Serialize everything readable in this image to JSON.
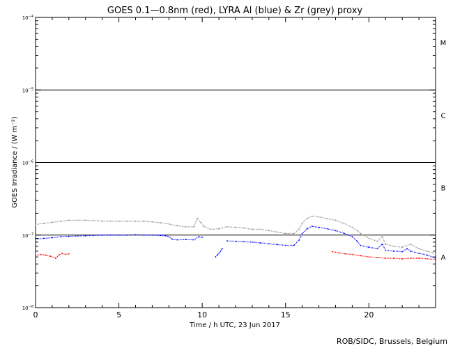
{
  "colors": {
    "goes": "#ff0000",
    "lyra_al": "#0000ff",
    "zr_proxy": "#909090",
    "axis": "#000000"
  },
  "chart_data": {
    "type": "scatter",
    "title": "GOES 0.1—0.8nm (red), LYRA Al (blue) & Zr (grey) proxy",
    "xlabel": "Time / h UTC, 23 Jun 2017",
    "ylabel": "GOES Irradiance / (W m⁻²)",
    "xlim": [
      0,
      24
    ],
    "ylim": [
      1e-08,
      0.0001
    ],
    "yscale": "log",
    "xticks": [
      0,
      5,
      10,
      15,
      20
    ],
    "yticks": [
      {
        "value": 1e-08,
        "base": "10",
        "exp": "−8"
      },
      {
        "value": 1e-07,
        "base": "10",
        "exp": "−7"
      },
      {
        "value": 1e-06,
        "base": "10",
        "exp": "−6"
      },
      {
        "value": 1e-05,
        "base": "10",
        "exp": "−5"
      },
      {
        "value": 0.0001,
        "base": "10",
        "exp": "−4"
      }
    ],
    "class_levels": [
      1e-07,
      1e-06,
      1e-05
    ],
    "class_labels": [
      {
        "label": "A",
        "value": 5e-08
      },
      {
        "label": "B",
        "value": 4.5e-07
      },
      {
        "label": "C",
        "value": 4.5e-06
      },
      {
        "label": "M",
        "value": 4.5e-05
      }
    ],
    "grid": false,
    "series": [
      {
        "name": "GOES 0.1—0.8nm",
        "color": "red",
        "segments": [
          {
            "x": [
              0.0,
              0.3,
              0.6,
              0.9,
              1.2,
              1.4,
              1.6,
              1.8,
              2.0
            ],
            "y": [
              5.2e-08,
              5.4e-08,
              5.3e-08,
              5.1e-08,
              4.8e-08,
              5.3e-08,
              5.6e-08,
              5.4e-08,
              5.5e-08
            ]
          },
          {
            "x": [
              17.8,
              18.2,
              18.6,
              19.0,
              19.5,
              20.0,
              20.5,
              21.0,
              21.5,
              22.0,
              22.5,
              23.0,
              23.5,
              24.0
            ],
            "y": [
              5.9e-08,
              5.7e-08,
              5.5e-08,
              5.4e-08,
              5.2e-08,
              5e-08,
              4.9e-08,
              4.8e-08,
              4.8e-08,
              4.7e-08,
              4.8e-08,
              4.8e-08,
              4.7e-08,
              4.6e-08
            ]
          }
        ]
      },
      {
        "name": "LYRA Al",
        "color": "blue",
        "segments": [
          {
            "x": [
              0.0,
              0.5,
              1.0,
              1.5,
              2.0,
              2.5,
              3.0,
              3.5,
              4.0,
              4.5,
              5.0,
              5.5,
              6.0,
              6.5,
              7.0,
              7.5,
              7.8,
              8.0,
              8.2,
              8.5,
              9.0,
              9.5,
              9.8,
              10.0
            ],
            "y": [
              8.8e-08,
              9e-08,
              9.2e-08,
              9.5e-08,
              9.6e-08,
              9.7e-08,
              9.8e-08,
              9.9e-08,
              1e-07,
              1e-07,
              1e-07,
              1e-07,
              1.01e-07,
              1e-07,
              1e-07,
              9.9e-08,
              9.8e-08,
              9.5e-08,
              8.8e-08,
              8.6e-08,
              8.7e-08,
              8.6e-08,
              9.5e-08,
              9.3e-08
            ]
          },
          {
            "x": [
              10.8,
              10.9,
              11.0,
              11.1,
              11.2
            ],
            "y": [
              5e-08,
              5.3e-08,
              5.6e-08,
              6e-08,
              6.5e-08
            ]
          },
          {
            "x": [
              11.5,
              12.0,
              12.5,
              13.0,
              13.5,
              14.0,
              14.5,
              15.0,
              15.5,
              15.8,
              16.0,
              16.3,
              16.6,
              17.0,
              17.5,
              18.0,
              18.5,
              19.0,
              19.3,
              19.5,
              20.0,
              20.5,
              20.8,
              21.0,
              21.5,
              22.0,
              22.3,
              22.5,
              23.0,
              23.5,
              24.0
            ],
            "y": [
              8.3e-08,
              8.2e-08,
              8.1e-08,
              8e-08,
              7.8e-08,
              7.6e-08,
              7.4e-08,
              7.2e-08,
              7.2e-08,
              8.5e-08,
              1.05e-07,
              1.22e-07,
              1.32e-07,
              1.28e-07,
              1.22e-07,
              1.15e-07,
              1.06e-07,
              9.5e-08,
              8.2e-08,
              7.2e-08,
              6.8e-08,
              6.5e-08,
              7.5e-08,
              6.2e-08,
              6e-08,
              5.9e-08,
              6.5e-08,
              6e-08,
              5.6e-08,
              5.3e-08,
              4.8e-08
            ]
          }
        ]
      },
      {
        "name": "Zr proxy",
        "color": "grey",
        "segments": [
          {
            "x": [
              0.0,
              0.5,
              1.0,
              1.5,
              2.0,
              2.5,
              3.0,
              3.5,
              4.0,
              4.5,
              5.0,
              5.5,
              6.0,
              6.5,
              7.0,
              7.5,
              8.0,
              8.5,
              9.0,
              9.5,
              9.7,
              9.9,
              10.1,
              10.5,
              11.0,
              11.5,
              12.0,
              12.5,
              13.0,
              13.5,
              14.0,
              14.5,
              15.0,
              15.5,
              15.8,
              16.0,
              16.3,
              16.6,
              17.0,
              17.5,
              18.0,
              18.5,
              19.0,
              19.3,
              19.5,
              20.0,
              20.5,
              20.8,
              21.0,
              21.5,
              22.0,
              22.5,
              23.0,
              23.5,
              24.0
            ],
            "y": [
              1.4e-07,
              1.45e-07,
              1.5e-07,
              1.55e-07,
              1.6e-07,
              1.6e-07,
              1.6e-07,
              1.58e-07,
              1.56e-07,
              1.55e-07,
              1.55e-07,
              1.55e-07,
              1.55e-07,
              1.55e-07,
              1.52e-07,
              1.48e-07,
              1.42e-07,
              1.35e-07,
              1.3e-07,
              1.3e-07,
              1.7e-07,
              1.5e-07,
              1.32e-07,
              1.2e-07,
              1.22e-07,
              1.3e-07,
              1.28e-07,
              1.25e-07,
              1.2e-07,
              1.2e-07,
              1.15e-07,
              1.1e-07,
              1.05e-07,
              1.05e-07,
              1.2e-07,
              1.45e-07,
              1.7e-07,
              1.82e-07,
              1.78e-07,
              1.68e-07,
              1.6e-07,
              1.45e-07,
              1.28e-07,
              1.15e-07,
              1.05e-07,
              9e-08,
              8.2e-08,
              9.5e-08,
              7.5e-08,
              7e-08,
              6.8e-08,
              7.5e-08,
              6.5e-08,
              6e-08,
              5.5e-08
            ]
          }
        ]
      }
    ],
    "annotation": "ROB/SIDC, Brussels, Belgium"
  }
}
